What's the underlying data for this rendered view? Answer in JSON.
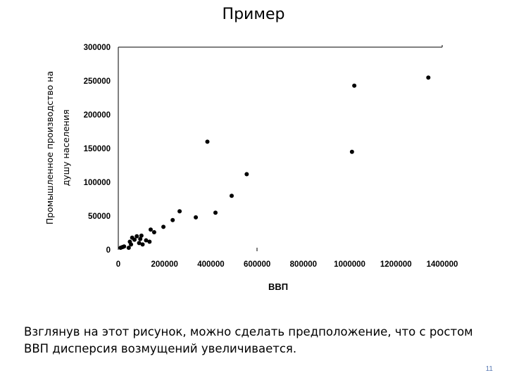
{
  "slide": {
    "title": "Пример",
    "caption": "Взглянув на этот рисунок, можно сделать предположение, что с ростом ВВП дисперсия возмущений увеличивается.",
    "page_number": "11"
  },
  "chart_data": {
    "type": "scatter",
    "title": "",
    "xlabel": "ВВП",
    "ylabel_lines": [
      "Промышленное производство на",
      "душу населения"
    ],
    "xlim": [
      0,
      1400000
    ],
    "ylim": [
      0,
      300000
    ],
    "x_ticks": [
      "0",
      "200000",
      "400000",
      "600000",
      "800000",
      "1000000",
      "1200000",
      "1400000"
    ],
    "y_ticks": [
      "0",
      "50000",
      "100000",
      "150000",
      "200000",
      "250000",
      "300000"
    ],
    "grid": false,
    "points": [
      {
        "x": 10000,
        "y": 3000
      },
      {
        "x": 18000,
        "y": 4000
      },
      {
        "x": 25000,
        "y": 5000
      },
      {
        "x": 45000,
        "y": 3000
      },
      {
        "x": 50000,
        "y": 12000
      },
      {
        "x": 55000,
        "y": 8000
      },
      {
        "x": 60000,
        "y": 18000
      },
      {
        "x": 70000,
        "y": 15000
      },
      {
        "x": 80000,
        "y": 20000
      },
      {
        "x": 90000,
        "y": 10000
      },
      {
        "x": 95000,
        "y": 16000
      },
      {
        "x": 100000,
        "y": 21000
      },
      {
        "x": 105000,
        "y": 8000
      },
      {
        "x": 120000,
        "y": 14000
      },
      {
        "x": 135000,
        "y": 12000
      },
      {
        "x": 140000,
        "y": 30000
      },
      {
        "x": 155000,
        "y": 26000
      },
      {
        "x": 195000,
        "y": 34000
      },
      {
        "x": 235000,
        "y": 44000
      },
      {
        "x": 265000,
        "y": 57000
      },
      {
        "x": 335000,
        "y": 48000
      },
      {
        "x": 385000,
        "y": 160000
      },
      {
        "x": 420000,
        "y": 55000
      },
      {
        "x": 490000,
        "y": 80000
      },
      {
        "x": 555000,
        "y": 112000
      },
      {
        "x": 1010000,
        "y": 145000
      },
      {
        "x": 1020000,
        "y": 243000
      },
      {
        "x": 1340000,
        "y": 255000
      }
    ]
  }
}
